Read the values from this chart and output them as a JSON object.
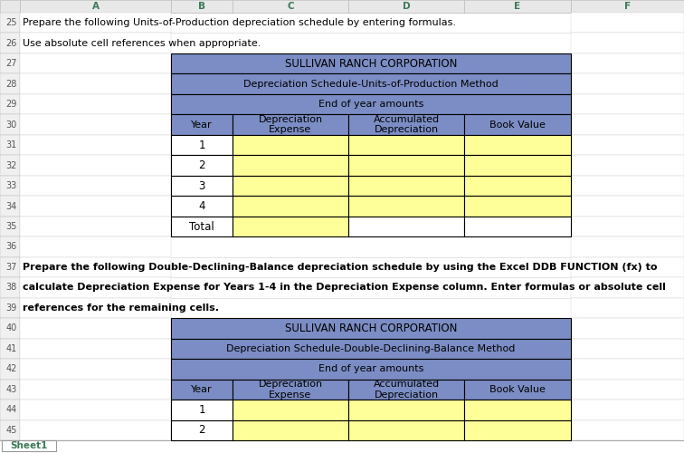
{
  "text_row25": "Prepare the following Units-of-Production depreciation schedule by entering formulas.",
  "text_row26": "Use absolute cell references when appropriate.",
  "text_row37_line1": "Prepare the following Double-Declining-Balance depreciation schedule by using the Excel DDB FUNCTION (fx) to",
  "text_row37_line2": "calculate Depreciation Expense for Years 1-4 in the Depreciation Expense column. Enter formulas or absolute cell",
  "text_row37_line3": "references for the remaining cells.",
  "table1_header1": "SULLIVAN RANCH CORPORATION",
  "table1_header2": "Depreciation Schedule-Units-of-Production Method",
  "table1_header3": "End of year amounts",
  "table1_col_year": "Year",
  "table1_col_dep": "Depreciation\nExpense",
  "table1_col_acc": "Accumulated\nDepreciation",
  "table1_col_book": "Book Value",
  "table1_years": [
    "1",
    "2",
    "3",
    "4",
    "Total"
  ],
  "table2_header1": "SULLIVAN RANCH CORPORATION",
  "table2_header2": "Depreciation Schedule-Double-Declining-Balance Method",
  "table2_header3": "End of year amounts",
  "table2_col_year": "Year",
  "table2_col_dep": "Depreciation\nExpense",
  "table2_col_acc": "Accumulated\nDepreciation",
  "table2_col_book": "Book Value",
  "table2_years": [
    "1",
    "2"
  ],
  "header_bg": "#7B8DC4",
  "data_cell_bg": "#FFFF99",
  "border_color": "#000000",
  "grid_line_color": "#D0D0D0",
  "col_header_bg": "#E8E8E8",
  "row_num_bg": "#F0F0F0",
  "background_color": "#FFFFFF",
  "text_color": "#000000",
  "row_num_color": "#555555",
  "col_letter_color": "#3B7A57"
}
